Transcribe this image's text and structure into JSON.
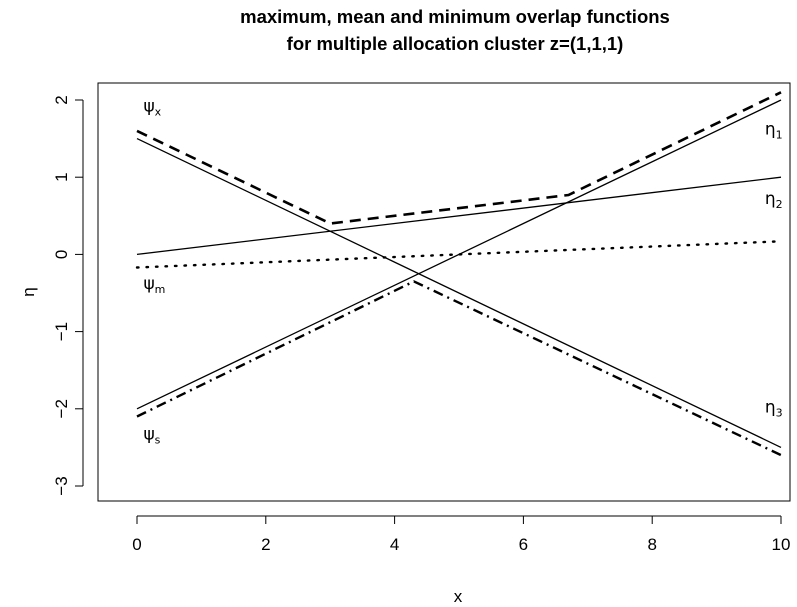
{
  "chart_data": {
    "type": "line",
    "title_lines": [
      "maximum, mean and minimum overlap functions",
      "for multiple allocation cluster z=(1,1,1)"
    ],
    "xlabel": "x",
    "ylabel": "η",
    "xlim": [
      0,
      10
    ],
    "ylim": [
      -3,
      2
    ],
    "x_ticks": [
      0,
      2,
      4,
      6,
      8,
      10
    ],
    "x_tick_labels": [
      "0",
      "2",
      "4",
      "6",
      "8",
      "10"
    ],
    "y_ticks": [
      -3,
      -2,
      -1,
      0,
      1,
      2
    ],
    "y_tick_labels": [
      "−3",
      "−2",
      "−1",
      "0",
      "1",
      "2"
    ],
    "series": [
      {
        "name": "η1",
        "style": "solid",
        "x": [
          0,
          10
        ],
        "y": [
          -2.0,
          2.0
        ]
      },
      {
        "name": "η2",
        "style": "solid",
        "x": [
          0,
          10
        ],
        "y": [
          0.0,
          1.0
        ]
      },
      {
        "name": "η3",
        "style": "solid",
        "x": [
          0,
          10
        ],
        "y": [
          1.5,
          -2.5
        ]
      },
      {
        "name": "ψx",
        "style": "dashed",
        "x": [
          0,
          3.0,
          6.7,
          10
        ],
        "y": [
          1.6,
          0.4,
          0.77,
          2.1
        ]
      },
      {
        "name": "ψm",
        "style": "dotted",
        "x": [
          0,
          10
        ],
        "y": [
          -0.17,
          0.17
        ]
      },
      {
        "name": "ψs",
        "style": "dashdot",
        "x": [
          0,
          4.3,
          10
        ],
        "y": [
          -2.1,
          -0.35,
          -2.6
        ]
      }
    ],
    "annotations": [
      {
        "base": "η",
        "sub": "1",
        "x": 9.75,
        "y": 1.55
      },
      {
        "base": "η",
        "sub": "2",
        "x": 9.75,
        "y": 0.65
      },
      {
        "base": "η",
        "sub": "3",
        "x": 9.75,
        "y": -2.05
      },
      {
        "base": "ψ",
        "sub": "x",
        "x": 0.1,
        "y": 1.85
      },
      {
        "base": "ψ",
        "sub": "m",
        "x": 0.1,
        "y": -0.45
      },
      {
        "base": "ψ",
        "sub": "s",
        "x": 0.1,
        "y": -2.4
      }
    ]
  }
}
